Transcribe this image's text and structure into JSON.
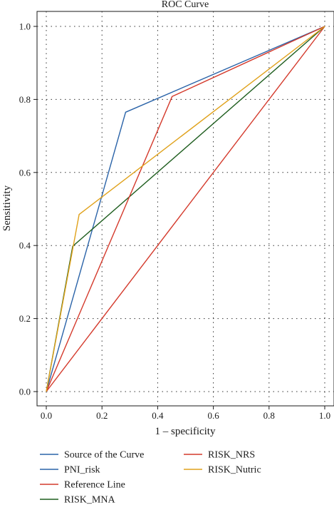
{
  "chart_data": {
    "type": "line",
    "title": "ROC Curve",
    "xlabel": "1 – specificity",
    "ylabel": "Sensitivity",
    "xlim": [
      0,
      1
    ],
    "ylim": [
      0,
      1
    ],
    "xticks": [
      "0.0",
      "0.2",
      "0.4",
      "0.6",
      "0.8",
      "1.0"
    ],
    "yticks": [
      "0.0",
      "0.2",
      "0.4",
      "0.6",
      "0.8",
      "1.0"
    ],
    "grid": true,
    "legend_title": "Source of the Curve",
    "legend_title_color": "#2a63a8",
    "legend_placement": "bottom",
    "series": [
      {
        "name": "PNI_risk",
        "color": "#2a63a8",
        "x": [
          0,
          0.285,
          1
        ],
        "y": [
          0,
          0.765,
          1
        ]
      },
      {
        "name": "Reference Line",
        "color": "#d43a2c",
        "x": [
          0,
          1
        ],
        "y": [
          0,
          1
        ]
      },
      {
        "name": "RISK_MNA",
        "color": "#1f5e1f",
        "x": [
          0,
          0.095,
          1
        ],
        "y": [
          0,
          0.398,
          1
        ]
      },
      {
        "name": "RISK_NRS",
        "color": "#d43a2c",
        "x": [
          0,
          0.452,
          1
        ],
        "y": [
          0,
          0.808,
          1
        ]
      },
      {
        "name": "RISK_Nutric",
        "color": "#e0a21c",
        "x": [
          0,
          0.118,
          1
        ],
        "y": [
          0,
          0.485,
          1
        ]
      }
    ]
  }
}
